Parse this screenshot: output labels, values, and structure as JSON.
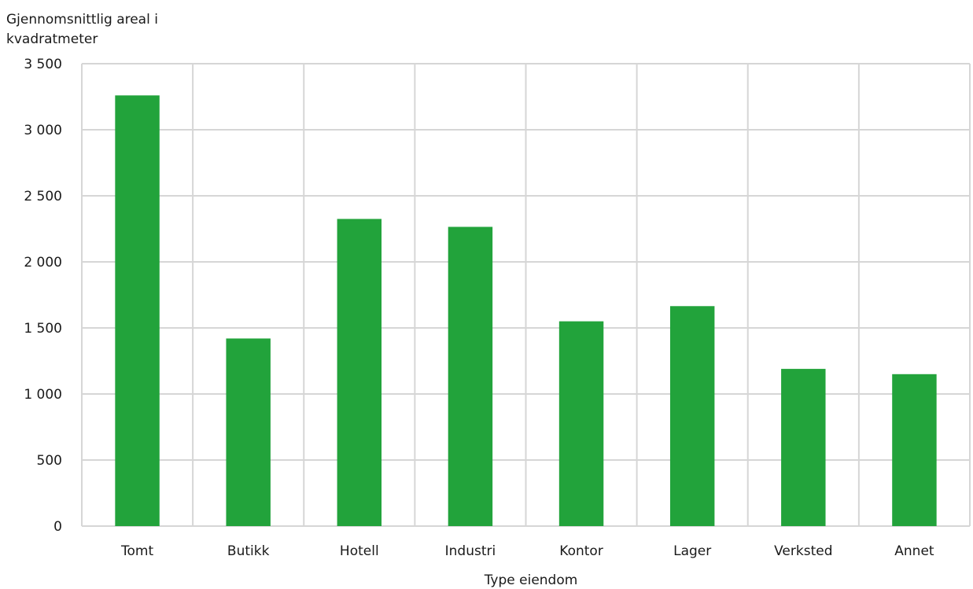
{
  "chart_data": {
    "type": "bar",
    "title": "",
    "ylabel_lines": [
      "Gjennomsnittlig areal i",
      "kvadratmeter"
    ],
    "xlabel": "Type eiendom",
    "categories": [
      "Tomt",
      "Butikk",
      "Hotell",
      "Industri",
      "Kontor",
      "Lager",
      "Verksted",
      "Annet"
    ],
    "values": [
      3260,
      1420,
      2325,
      2265,
      1550,
      1665,
      1190,
      1150
    ],
    "ylim": [
      0,
      3500
    ],
    "yticks": [
      0,
      500,
      1000,
      1500,
      2000,
      2500,
      3000,
      3500
    ],
    "ytick_labels": [
      "0",
      "500",
      "1 000",
      "1 500",
      "2 000",
      "2 500",
      "3 000",
      "3 500"
    ],
    "grid": true,
    "legend": "none",
    "colors": {
      "bar": "#22a33b",
      "grid": "#d6d6d6",
      "text": "#1a1a1a"
    }
  }
}
